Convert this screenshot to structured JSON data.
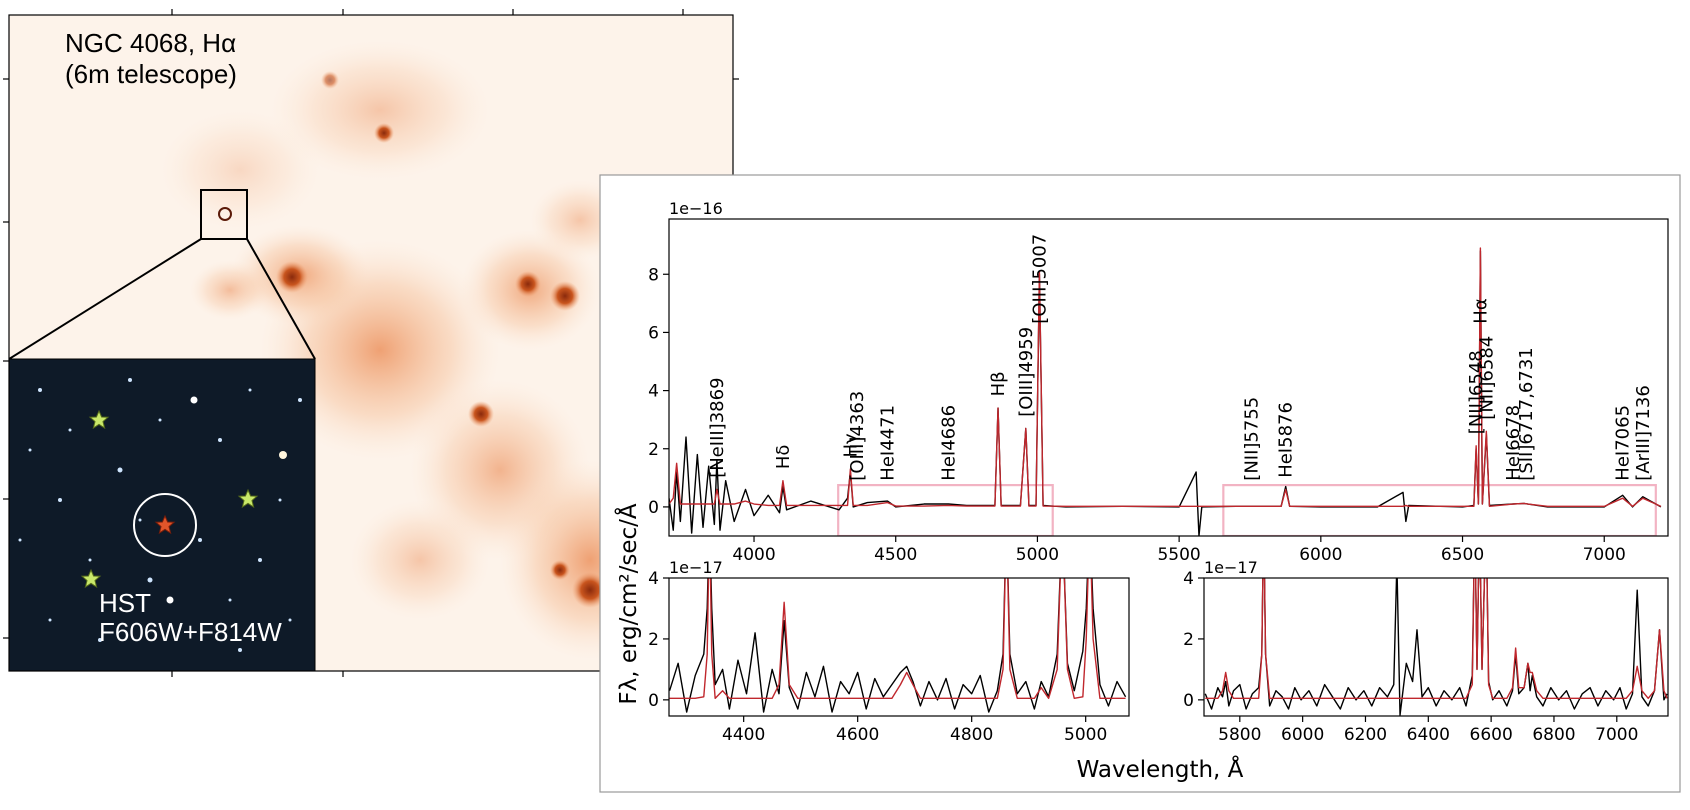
{
  "image_panel": {
    "title": "NGC 4068, Hα",
    "subtitle": "(6m telescope)",
    "inset_label": "HST",
    "inset_filters": "F606W+F814W"
  },
  "figure": {
    "xlabel": "Wavelength, Å",
    "ylabel": "Fλ, erg/cm²/sec/Å"
  },
  "chart_data": [
    {
      "type": "line",
      "scale_label": "1e−16",
      "x": [
        3700,
        3715,
        3727,
        3740,
        3760,
        3780,
        3800,
        3820,
        3840,
        3860,
        3869,
        3880,
        3900,
        3930,
        3970,
        4000,
        4050,
        4090,
        4102,
        4115,
        4200,
        4300,
        4330,
        4340,
        4350,
        4400,
        4471,
        4500,
        4600,
        4686,
        4750,
        4850,
        4861,
        4872,
        4940,
        4959,
        4970,
        4995,
        5007,
        5020,
        5100,
        5300,
        5500,
        5560,
        5570,
        5580,
        5700,
        5860,
        5876,
        5890,
        6000,
        6200,
        6290,
        6300,
        6310,
        6500,
        6540,
        6548,
        6556,
        6563,
        6570,
        6584,
        6595,
        6678,
        6717,
        6731,
        6800,
        7000,
        7065,
        7100,
        7136,
        7200
      ],
      "series": [
        {
          "color": "#000000",
          "values": [
            0.3,
            -0.8,
            1.2,
            -0.5,
            2.4,
            -0.9,
            1.8,
            -0.7,
            1.4,
            -0.6,
            1.6,
            -0.8,
            0.9,
            -0.5,
            0.6,
            -0.3,
            0.4,
            -0.2,
            0.7,
            -0.1,
            0.2,
            -0.1,
            0.3,
            1.2,
            0.0,
            0.15,
            0.2,
            0.0,
            0.1,
            0.1,
            0.05,
            0.05,
            3.4,
            0.05,
            0.05,
            2.7,
            0.05,
            0.05,
            8.0,
            0.05,
            0.0,
            0.02,
            0.0,
            1.2,
            -1.0,
            0.0,
            0.02,
            0.02,
            0.7,
            0.02,
            0.0,
            0.0,
            0.5,
            -0.5,
            0.05,
            0.0,
            0.05,
            2.0,
            0.1,
            8.8,
            0.1,
            2.5,
            0.05,
            0.1,
            0.12,
            0.1,
            0.0,
            0.0,
            0.4,
            0.0,
            0.35,
            0.0
          ]
        },
        {
          "color": "#c0272d",
          "values": [
            0.1,
            0.3,
            1.5,
            0.1,
            0.1,
            0.1,
            0.1,
            0.1,
            0.1,
            0.1,
            0.6,
            0.1,
            0.1,
            0.1,
            0.2,
            0.1,
            0.05,
            0.05,
            0.9,
            0.05,
            0.05,
            0.05,
            0.05,
            1.3,
            0.05,
            0.05,
            0.15,
            0.03,
            0.03,
            0.05,
            0.03,
            0.03,
            3.4,
            0.03,
            0.03,
            2.7,
            0.03,
            0.03,
            8.1,
            0.03,
            0.02,
            0.02,
            0.02,
            0.02,
            0.02,
            0.02,
            0.02,
            0.02,
            0.6,
            0.02,
            0.02,
            0.02,
            0.02,
            0.05,
            0.02,
            0.02,
            0.02,
            2.1,
            0.1,
            8.9,
            0.1,
            2.6,
            0.02,
            0.1,
            0.12,
            0.1,
            0.02,
            0.02,
            0.3,
            0.02,
            0.3,
            0.02
          ]
        }
      ],
      "xlim": [
        3700,
        7225
      ],
      "ylim": [
        -1,
        9.9
      ],
      "xticks": [
        4000,
        4500,
        5000,
        5500,
        6000,
        6500,
        7000
      ],
      "yticks": [
        0,
        2,
        4,
        6,
        8
      ],
      "zoom_boxes": [
        {
          "color": "#f2b3c3",
          "xlim": [
            4297,
            5054
          ],
          "ylim": [
            -1,
            0.75
          ]
        },
        {
          "color": "#f2b3c3",
          "xlim": [
            5656,
            7182
          ],
          "ylim": [
            -1,
            0.75
          ]
        }
      ],
      "line_labels": [
        {
          "text": "[NeIII]3869",
          "x": 3869
        },
        {
          "text": "Hδ",
          "x": 4102
        },
        {
          "text": "Hγ",
          "x": 4340
        },
        {
          "text": "[OIII]4363",
          "x": 4363
        },
        {
          "text": "HeI4471",
          "x": 4471
        },
        {
          "text": "HeI4686",
          "x": 4686
        },
        {
          "text": "Hβ",
          "x": 4861
        },
        {
          "text": "[OIII]4959",
          "x": 4959
        },
        {
          "text": "[OIII]5007",
          "x": 5007
        },
        {
          "text": "[NII]5755",
          "x": 5755
        },
        {
          "text": "HeI5876",
          "x": 5876
        },
        {
          "text": "[NII]6548",
          "x": 6548
        },
        {
          "text": "Hα",
          "x": 6563
        },
        {
          "text": "[NII]6584",
          "x": 6584
        },
        {
          "text": "HeI6678",
          "x": 6678
        },
        {
          "text": "[SII]6717,6731",
          "x": 6724
        },
        {
          "text": "HeI7065",
          "x": 7065
        },
        {
          "text": "[ArIII]7136",
          "x": 7136
        }
      ]
    },
    {
      "type": "line",
      "scale_label": "1e−17",
      "x": [
        4270,
        4285,
        4300,
        4315,
        4330,
        4336,
        4340,
        4344,
        4350,
        4363,
        4375,
        4390,
        4405,
        4420,
        4435,
        4450,
        4462,
        4471,
        4480,
        4495,
        4510,
        4525,
        4540,
        4555,
        4570,
        4585,
        4600,
        4615,
        4630,
        4645,
        4660,
        4675,
        4686,
        4697,
        4710,
        4725,
        4740,
        4755,
        4770,
        4785,
        4800,
        4815,
        4830,
        4845,
        4855,
        4861,
        4867,
        4880,
        4895,
        4910,
        4922,
        4935,
        4950,
        4959,
        4968,
        4980,
        4995,
        5001,
        5007,
        5013,
        5025,
        5040,
        5055,
        5070
      ],
      "series": [
        {
          "color": "#000000",
          "values": [
            0.3,
            1.2,
            -0.4,
            0.8,
            1.5,
            3,
            6,
            3,
            0.5,
            1.0,
            -0.3,
            1.3,
            0.2,
            2.2,
            -0.4,
            1.0,
            0.2,
            2.6,
            0.4,
            -0.3,
            0.9,
            0.1,
            1.1,
            -0.4,
            0.6,
            0.2,
            0.9,
            -0.3,
            0.7,
            0.1,
            0.5,
            0.9,
            1.1,
            0.6,
            -0.2,
            0.6,
            0.0,
            0.7,
            -0.3,
            0.5,
            0.2,
            0.8,
            -0.4,
            0.3,
            1.5,
            6,
            1.5,
            0.2,
            0.6,
            -0.3,
            0.6,
            0.1,
            1.5,
            6,
            1.2,
            0.3,
            1.6,
            3,
            6,
            3,
            0.5,
            -0.2,
            0.6,
            0.1
          ]
        },
        {
          "color": "#c0272d",
          "values": [
            0.05,
            0.05,
            0.05,
            0.05,
            0.1,
            1.5,
            6,
            1.5,
            0.05,
            0.3,
            0.05,
            0.05,
            0.05,
            0.05,
            0.05,
            0.05,
            0.5,
            3.2,
            0.5,
            0.05,
            0.05,
            0.05,
            0.05,
            0.05,
            0.05,
            0.05,
            0.05,
            0.05,
            0.05,
            0.05,
            0.05,
            0.5,
            0.9,
            0.5,
            0.05,
            0.05,
            0.05,
            0.05,
            0.05,
            0.05,
            0.05,
            0.05,
            0.05,
            0.05,
            1,
            6,
            1,
            0.05,
            0.05,
            0.05,
            0.4,
            0.05,
            1,
            6,
            1,
            0.05,
            0.1,
            2,
            6,
            2,
            0.05,
            0.05,
            0.05,
            0.05
          ]
        }
      ],
      "xlim": [
        4269,
        5076
      ],
      "ylim": [
        -0.53,
        4
      ],
      "xticks": [
        4400,
        4600,
        4800,
        5000
      ],
      "yticks": [
        0,
        2,
        4
      ]
    },
    {
      "type": "line",
      "scale_label": "1e−17",
      "x": [
        5690,
        5710,
        5730,
        5745,
        5755,
        5765,
        5780,
        5800,
        5820,
        5840,
        5860,
        5870,
        5876,
        5882,
        5895,
        5915,
        5935,
        5955,
        5975,
        5995,
        6020,
        6045,
        6070,
        6095,
        6120,
        6145,
        6170,
        6195,
        6220,
        6245,
        6270,
        6290,
        6300,
        6310,
        6330,
        6350,
        6364,
        6380,
        6400,
        6425,
        6450,
        6475,
        6500,
        6520,
        6540,
        6548,
        6555,
        6563,
        6571,
        6584,
        6592,
        6605,
        6625,
        6650,
        6668,
        6678,
        6688,
        6705,
        6717,
        6724,
        6731,
        6745,
        6765,
        6790,
        6815,
        6840,
        6865,
        6890,
        6915,
        6940,
        6965,
        6990,
        7010,
        7030,
        7050,
        7065,
        7080,
        7100,
        7120,
        7136,
        7150,
        7160
      ],
      "series": [
        {
          "color": "#000000",
          "values": [
            0.2,
            -0.3,
            0.4,
            0.1,
            0.6,
            -0.2,
            0.3,
            0.5,
            -0.3,
            0.2,
            0.4,
            1.5,
            6,
            1.5,
            -0.2,
            0.3,
            0.1,
            -0.3,
            0.4,
            0.0,
            0.3,
            -0.2,
            0.5,
            0.1,
            -0.3,
            0.4,
            0.0,
            0.3,
            -0.2,
            0.4,
            0.1,
            0.5,
            4.5,
            -0.5,
            1.2,
            0.6,
            2.3,
            0.1,
            0.4,
            -0.2,
            0.3,
            0.0,
            0.4,
            -0.2,
            0.8,
            6,
            1.0,
            6,
            1.0,
            6,
            0.6,
            0.0,
            0.3,
            -0.2,
            0.3,
            1.5,
            0.2,
            0.4,
            1.2,
            0.3,
            0.8,
            0.1,
            -0.2,
            0.4,
            0.0,
            0.3,
            -0.3,
            0.2,
            0.4,
            -0.2,
            0.3,
            0.0,
            0.4,
            -0.3,
            0.2,
            3.6,
            0.1,
            -0.2,
            0.3,
            2.3,
            0.0,
            0.2
          ]
        },
        {
          "color": "#c0272d",
          "values": [
            0.05,
            0.05,
            0.05,
            0.3,
            0.9,
            0.3,
            0.05,
            0.05,
            0.05,
            0.05,
            0.05,
            1.5,
            6,
            1.5,
            0.05,
            0.05,
            0.05,
            0.05,
            0.05,
            0.05,
            0.05,
            0.05,
            0.05,
            0.05,
            0.05,
            0.05,
            0.05,
            0.05,
            0.05,
            0.05,
            0.05,
            0.05,
            0.05,
            0.05,
            0.05,
            0.05,
            0.05,
            0.05,
            0.05,
            0.05,
            0.05,
            0.05,
            0.05,
            0.05,
            0.5,
            6,
            1.0,
            6,
            1.0,
            6,
            0.5,
            0.05,
            0.05,
            0.05,
            0.4,
            1.7,
            0.4,
            0.4,
            1.2,
            0.9,
            0.9,
            0.3,
            0.05,
            0.05,
            0.05,
            0.05,
            0.05,
            0.05,
            0.05,
            0.05,
            0.05,
            0.05,
            0.05,
            0.05,
            0.3,
            1.1,
            0.3,
            0.05,
            0.3,
            2.3,
            0.3,
            0.05
          ]
        }
      ],
      "xlim": [
        5686,
        7163
      ],
      "ylim": [
        -0.53,
        4
      ],
      "xticks": [
        5800,
        6000,
        6200,
        6400,
        6600,
        6800,
        7000
      ],
      "yticks": [
        0,
        2,
        4
      ]
    }
  ]
}
